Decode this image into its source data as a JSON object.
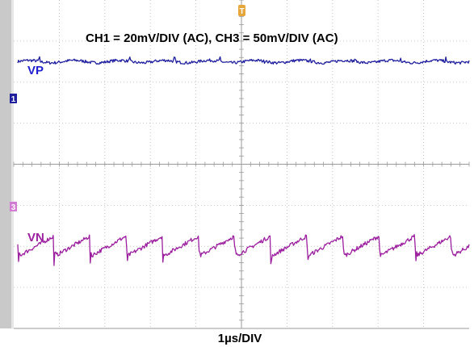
{
  "chart_data": {
    "type": "line",
    "title": "CH1 = 20mV/DIV (AC), CH3 = 50mV/DIV (AC)",
    "xlabel": "1µs/DIV",
    "x_divisions": 10,
    "y_divisions": 8,
    "grid": true,
    "trigger_marker": "T",
    "series": [
      {
        "name": "VP",
        "channel_marker": "1",
        "color": "#1f1f9e",
        "scale": "20mV/DIV",
        "coupling": "AC",
        "baseline_div": 2.5,
        "shape": "noise",
        "period_div": 1.0,
        "amplitude_div": 0.03,
        "noise_div": 0.035,
        "spike_div": 0.12
      },
      {
        "name": "VN",
        "channel_marker": "3",
        "color": "#9b1f9e",
        "scale": "50mV/DIV",
        "coupling": "AC",
        "baseline_div": -2.0,
        "shape": "sawtooth",
        "period_div": 0.8,
        "amplitude_div": 0.25,
        "noise_div": 0.05,
        "spike_div": 0.25
      }
    ]
  }
}
